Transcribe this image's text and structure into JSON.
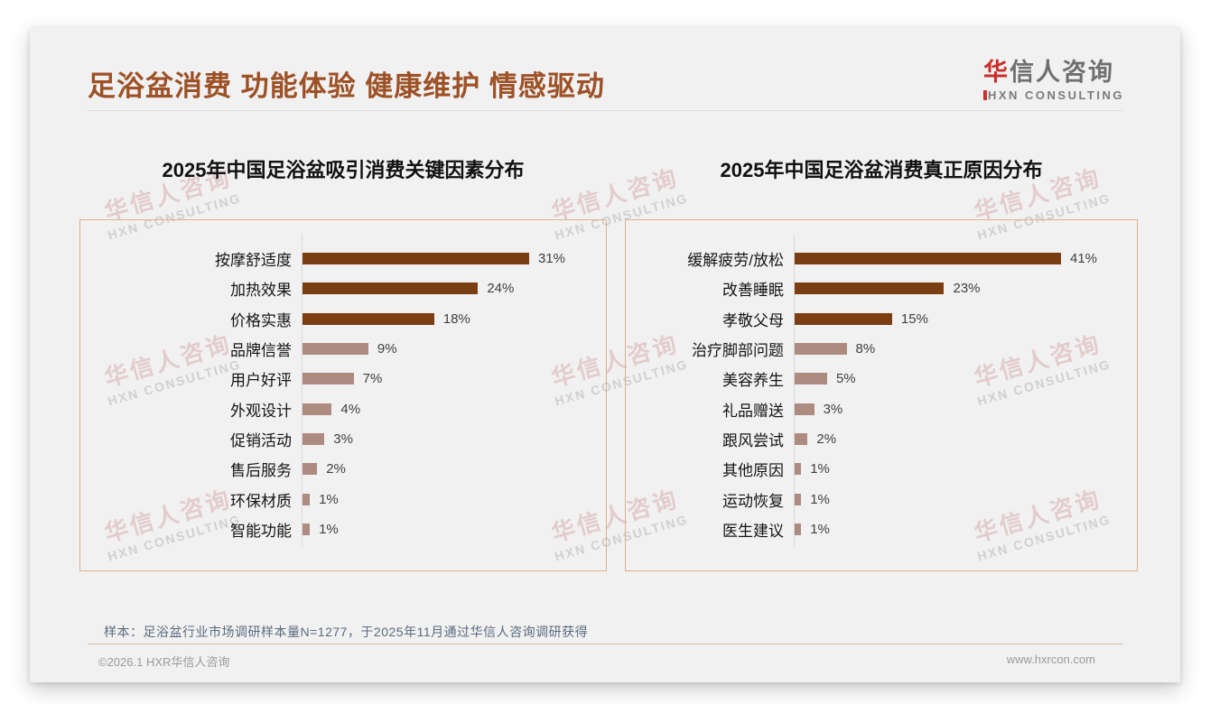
{
  "header": {
    "title": "足浴盆消费 功能体验 健康维护 情感驱动",
    "logo": {
      "brand_red": "华",
      "brand_rest": "信人咨询",
      "subtitle": "HXN CONSULTING"
    }
  },
  "watermark": {
    "line1": "华信人咨询",
    "line2": "HXN CONSULTING"
  },
  "colors": {
    "title_brown": "#9d5126",
    "bar_primary": "#7b3d12",
    "bar_secondary": "#ad8b80",
    "panel_border": "#deb18c",
    "logo_red": "#c9302c"
  },
  "chart_data": [
    {
      "type": "bar",
      "orientation": "horizontal",
      "title": "2025年中国足浴盆吸引消费关键因素分布",
      "categories": [
        "按摩舒适度",
        "加热效果",
        "价格实惠",
        "品牌信誉",
        "用户好评",
        "外观设计",
        "促销活动",
        "售后服务",
        "环保材质",
        "智能功能"
      ],
      "values": [
        31,
        24,
        18,
        9,
        7,
        4,
        3,
        2,
        1,
        1
      ],
      "unit": "%",
      "highlight_count": 3,
      "value_labels": [
        "31%",
        "24%",
        "18%",
        "9%",
        "7%",
        "4%",
        "3%",
        "2%",
        "1%",
        "1%"
      ],
      "legend": "none",
      "grid": "off"
    },
    {
      "type": "bar",
      "orientation": "horizontal",
      "title": "2025年中国足浴盆消费真正原因分布",
      "categories": [
        "缓解疲劳/放松",
        "改善睡眠",
        "孝敬父母",
        "治疗脚部问题",
        "美容养生",
        "礼品赠送",
        "跟风尝试",
        "其他原因",
        "运动恢复",
        "医生建议"
      ],
      "values": [
        41,
        23,
        15,
        8,
        5,
        3,
        2,
        1,
        1,
        1
      ],
      "unit": "%",
      "highlight_count": 3,
      "value_labels": [
        "41%",
        "23%",
        "15%",
        "8%",
        "5%",
        "3%",
        "2%",
        "1%",
        "1%",
        "1%"
      ],
      "legend": "none",
      "grid": "off"
    }
  ],
  "footnote": "样本：足浴盆行业市场调研样本量N=1277，于2025年11月通过华信人咨询调研获得",
  "footer": {
    "left": "©2026.1 HXR华信人咨询",
    "right": "www.hxrcon.com"
  }
}
